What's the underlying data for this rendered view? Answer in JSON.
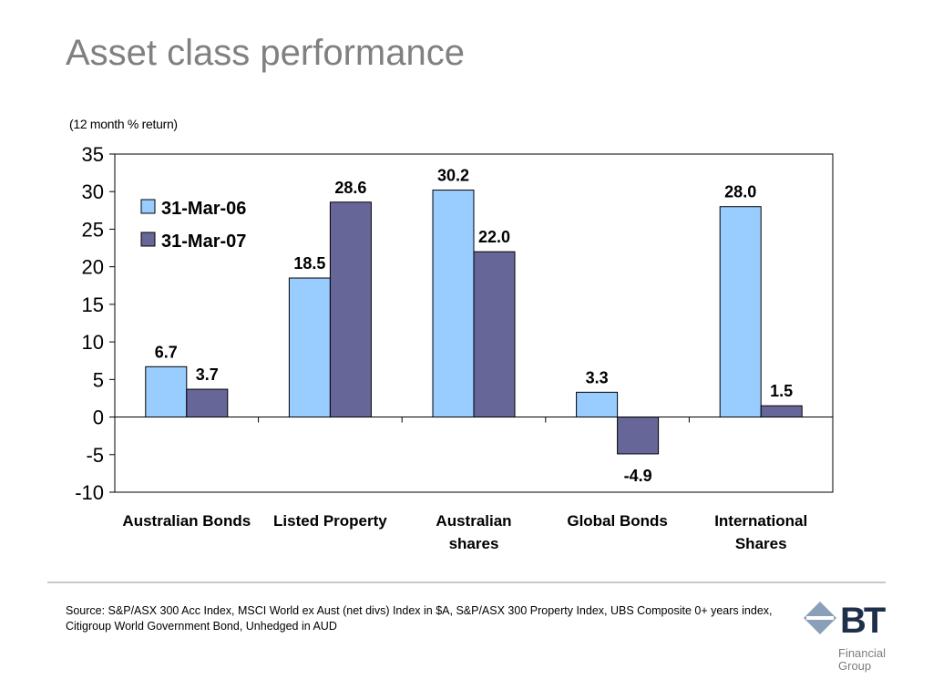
{
  "slide": {
    "title": "Asset class performance",
    "source": "Source: S&P/ASX 300 Acc Index, MSCI World ex Aust (net divs) Index in $A, S&P/ASX 300 Property Index, UBS Composite 0+ years index, Citigroup World Government Bond, Unhedged in AUD"
  },
  "logo": {
    "brand": "BT",
    "line1": "Financial",
    "line2": "Group"
  },
  "chart_data": {
    "type": "bar",
    "title": "",
    "subtitle": "(12 month %  return)",
    "categories": [
      [
        "Australian Bonds"
      ],
      [
        "Listed Property"
      ],
      [
        "Australian",
        "shares"
      ],
      [
        "Global Bonds"
      ],
      [
        "International",
        "Shares"
      ]
    ],
    "series": [
      {
        "name": "31-Mar-06",
        "values": [
          6.7,
          18.5,
          30.2,
          3.3,
          28.0
        ],
        "labels": [
          "6.7",
          "18.5",
          "30.2",
          "3.3",
          "28.0"
        ],
        "color": "#99ccff"
      },
      {
        "name": "31-Mar-07",
        "values": [
          3.7,
          28.6,
          22.0,
          -4.9,
          1.5
        ],
        "labels": [
          "3.7",
          "28.6",
          "22.0",
          "-4.9",
          "1.5"
        ],
        "color": "#666699"
      }
    ],
    "ylim": [
      -10,
      35
    ],
    "yticks": [
      35,
      30,
      25,
      20,
      15,
      10,
      5,
      0,
      -5,
      -10
    ],
    "legend_position": "top-left",
    "grid": false,
    "xlabel": "",
    "ylabel": ""
  }
}
